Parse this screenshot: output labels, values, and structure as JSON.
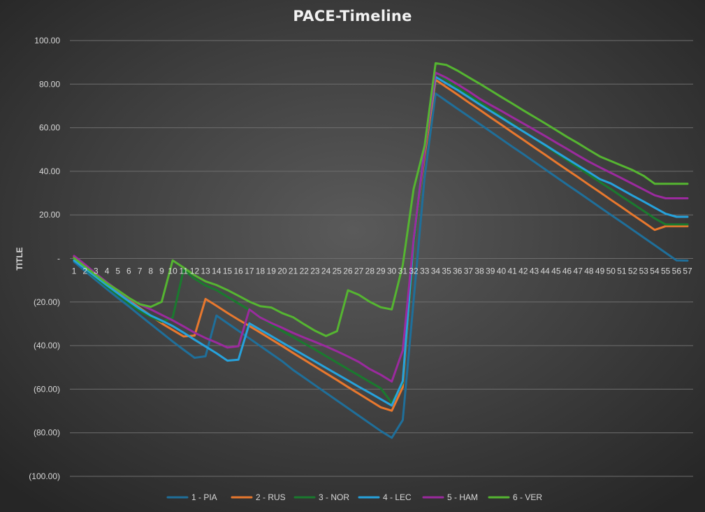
{
  "chart_data": {
    "type": "line",
    "title": "PACE-Timeline",
    "xlabel": "",
    "ylabel": "TITLE",
    "ylim": [
      -100,
      100
    ],
    "yticks": [
      100,
      80,
      60,
      40,
      20,
      0,
      -20,
      -40,
      -60,
      -80,
      -100
    ],
    "ytick_labels": [
      "100.00",
      "80.00",
      "60.00",
      "40.00",
      "20.00",
      "-",
      "(20.00)",
      "(40.00)",
      "(60.00)",
      "(80.00)",
      "(100.00)"
    ],
    "grid": true,
    "legend_position": "bottom",
    "categories": [
      "1",
      "2",
      "3",
      "4",
      "5",
      "6",
      "7",
      "8",
      "9",
      "10",
      "11",
      "12",
      "13",
      "14",
      "15",
      "16",
      "17",
      "18",
      "19",
      "20",
      "21",
      "22",
      "23",
      "24",
      "25",
      "26",
      "27",
      "28",
      "29",
      "30",
      "31",
      "32",
      "33",
      "34",
      "35",
      "36",
      "37",
      "38",
      "39",
      "40",
      "41",
      "42",
      "43",
      "44",
      "45",
      "46",
      "47",
      "48",
      "49",
      "50",
      "51",
      "52",
      "53",
      "54",
      "55",
      "56",
      "57"
    ],
    "series": [
      {
        "name": "1 - PIA",
        "color": "#1f6f9a",
        "values": [
          -1.5,
          -5.8,
          -10,
          -14.1,
          -18.1,
          -22,
          -26.1,
          -30.1,
          -34.1,
          -38.1,
          -41.9,
          -45.6,
          -44.9,
          -26.2,
          -29.7,
          -33.2,
          -36.7,
          -40.2,
          -43.7,
          -47.2,
          -51.2,
          -54.7,
          -58.2,
          -61.7,
          -65.2,
          -68.7,
          -72.2,
          -75.7,
          -79.2,
          -82.3,
          -74.2,
          -19.2,
          37.3,
          75.7,
          72.2,
          68.7,
          65.3,
          61.8,
          58.3,
          54.8,
          51.3,
          47.9,
          44.4,
          40.9,
          37.4,
          33.9,
          30.5,
          27.0,
          23.5,
          20.0,
          16.6,
          13.1,
          9.6,
          6.1,
          2.6,
          -0.9,
          -1.0
        ]
      },
      {
        "name": "2 - RUS",
        "color": "#e8782e",
        "values": [
          0.8,
          -3.3,
          -7.3,
          -11.3,
          -15.2,
          -19.2,
          -22.7,
          -26.3,
          -29.8,
          -32.8,
          -35.8,
          -35.4,
          -18.6,
          -21.7,
          -25,
          -28.1,
          -31,
          -34,
          -37.1,
          -40.2,
          -43.4,
          -46.5,
          -49.6,
          -52.7,
          -55.8,
          -59,
          -62.1,
          -65.2,
          -68.3,
          -69.9,
          -59.1,
          6.3,
          47.2,
          82.0,
          78.6,
          75.2,
          71.7,
          68.3,
          64.8,
          61.4,
          57.9,
          54.5,
          51.0,
          47.6,
          44.1,
          40.7,
          37.3,
          33.8,
          30.4,
          26.9,
          23.5,
          20.0,
          16.6,
          13.1,
          14.8,
          14.8,
          14.8
        ]
      },
      {
        "name": "3 - NOR",
        "color": "#1a7a2e",
        "values": [
          -0.4,
          -4.8,
          -8.9,
          -13,
          -16.8,
          -20.7,
          -24.1,
          -26.8,
          -29.1,
          -27.2,
          -5.2,
          -9.3,
          -12.4,
          -14.5,
          -17.6,
          -20.6,
          -23.7,
          -26.8,
          -30.4,
          -33.3,
          -36.1,
          -39,
          -41.8,
          -44.8,
          -47.8,
          -50.8,
          -53.7,
          -56.7,
          -59.6,
          -66.3,
          -57.1,
          4.6,
          49.1,
          85.2,
          81.9,
          78.5,
          75.1,
          71.8,
          68.5,
          65.1,
          61.8,
          58.4,
          55.1,
          51.8,
          48.4,
          45.1,
          41.8,
          38.4,
          35.1,
          31.8,
          28.4,
          25.1,
          21.8,
          18.4,
          15.6,
          15.6,
          15.6
        ]
      },
      {
        "name": "4 - LEC",
        "color": "#26a2dc",
        "values": [
          -0.9,
          -4.6,
          -8.5,
          -12.3,
          -16,
          -19.6,
          -23.1,
          -26.2,
          -28.5,
          -31,
          -34.1,
          -37.3,
          -40.4,
          -43.5,
          -46.9,
          -46.5,
          -29.8,
          -32.7,
          -35.6,
          -38.6,
          -41.5,
          -44.4,
          -47.3,
          -50.2,
          -53.1,
          -56,
          -58.9,
          -61.7,
          -64.6,
          -67.5,
          -56.3,
          8.2,
          50.7,
          83.3,
          80.3,
          77.3,
          74.1,
          70.8,
          67.7,
          64.6,
          61.4,
          58.3,
          55.2,
          52.1,
          48.9,
          45.8,
          42.7,
          39.6,
          36.4,
          34.4,
          31.6,
          28.8,
          26.1,
          23.3,
          20.5,
          19.1,
          19.1
        ]
      },
      {
        "name": "5 - HAM",
        "color": "#9b2a9e",
        "values": [
          1.2,
          -2.8,
          -7,
          -10.9,
          -14.7,
          -18.4,
          -21.1,
          -23.4,
          -25.9,
          -28.4,
          -31.2,
          -34.1,
          -36.5,
          -38.6,
          -40.9,
          -40.3,
          -23.4,
          -27.1,
          -29.6,
          -31.8,
          -34.2,
          -36.3,
          -38.3,
          -40.4,
          -42.6,
          -45,
          -47.5,
          -50.8,
          -53.4,
          -56.5,
          -42.2,
          8.7,
          49.6,
          85.3,
          82.9,
          79.9,
          76.8,
          73.4,
          70.5,
          67.7,
          64.8,
          62.0,
          59.1,
          56.2,
          53.2,
          50.3,
          47.3,
          44.4,
          41.8,
          39.3,
          36.8,
          34.2,
          31.6,
          29.0,
          27.6,
          27.6,
          27.6
        ]
      },
      {
        "name": "6 - VER",
        "color": "#55b531",
        "values": [
          0.2,
          -3.8,
          -7.6,
          -11.4,
          -14.6,
          -18.1,
          -21,
          -22.2,
          -19.9,
          -0.9,
          -4.2,
          -7.7,
          -10.5,
          -12.2,
          -14.5,
          -17.1,
          -19.8,
          -21.9,
          -22.5,
          -25.1,
          -27,
          -30.2,
          -33.2,
          -35.6,
          -33.4,
          -14.6,
          -16.7,
          -19.9,
          -22.4,
          -23.4,
          -3.1,
          31.9,
          51.7,
          89.6,
          88.8,
          86.2,
          83.2,
          80.3,
          77.2,
          74.1,
          71.1,
          68.0,
          65.0,
          62.0,
          58.9,
          55.8,
          52.9,
          49.8,
          46.8,
          44.7,
          42.6,
          40.5,
          37.9,
          34.3,
          34.3,
          34.3,
          34.3
        ]
      }
    ]
  }
}
